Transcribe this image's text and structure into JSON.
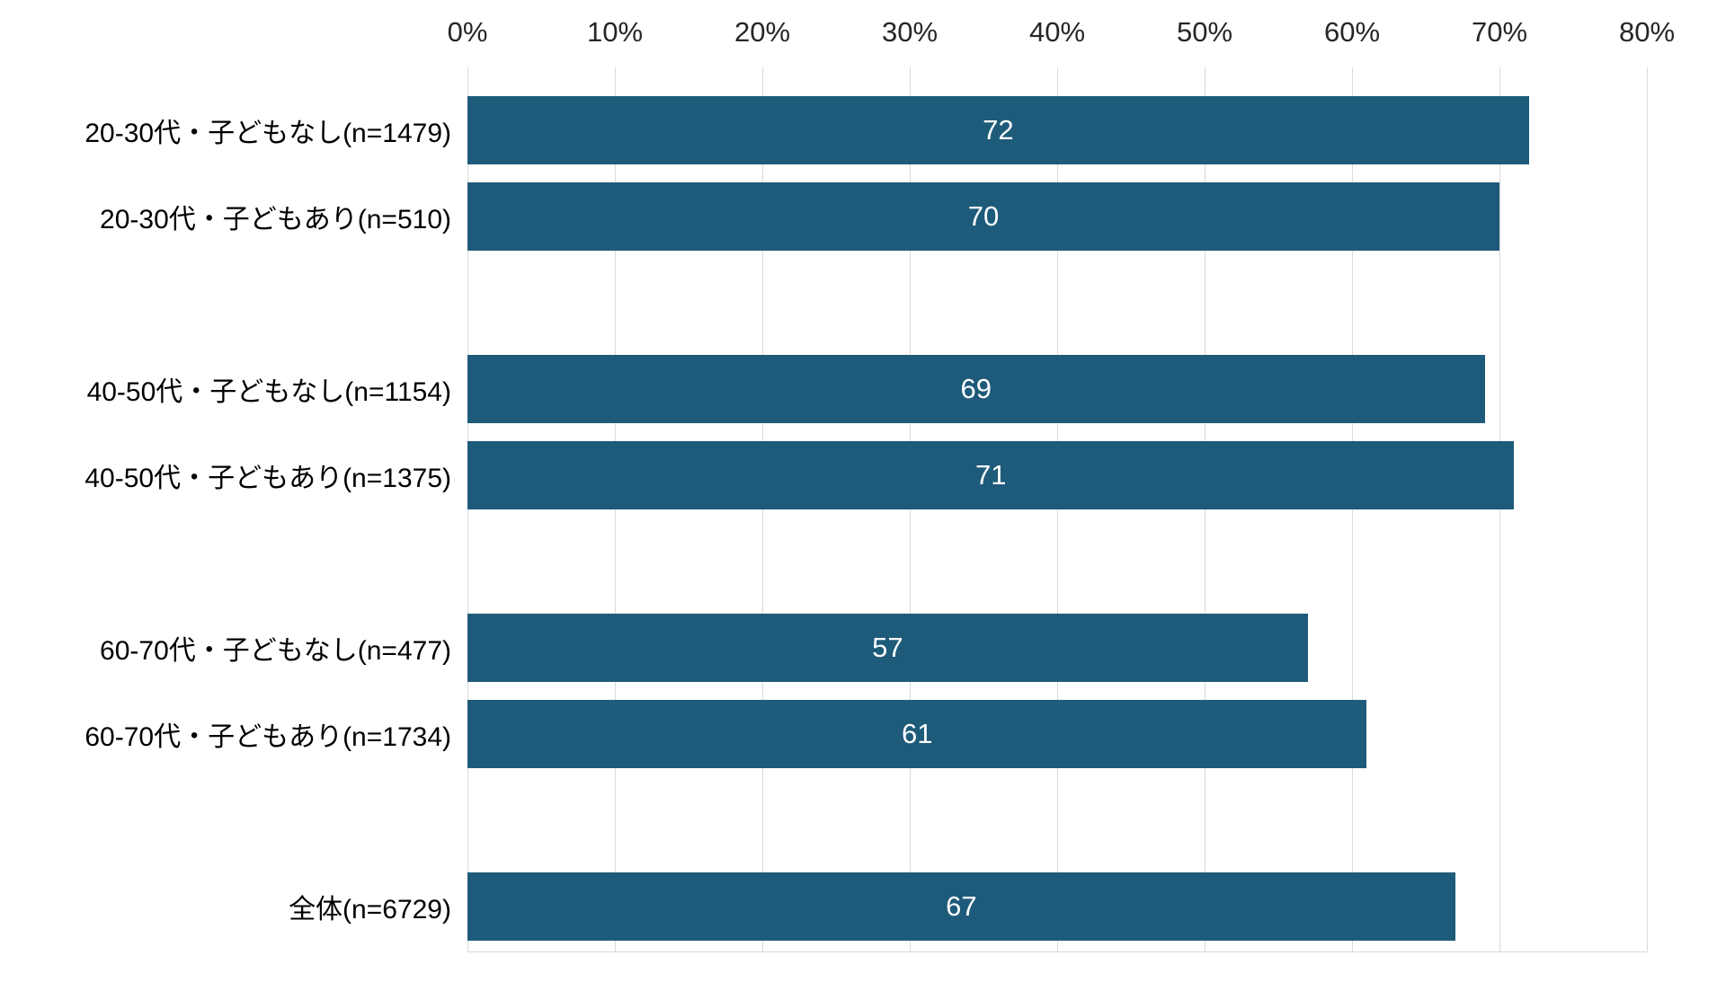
{
  "chart_data": {
    "type": "bar",
    "orientation": "horizontal",
    "title": "",
    "xlabel": "",
    "ylabel": "",
    "x_axis": {
      "min": 0,
      "max": 80,
      "step": 10,
      "tick_labels": [
        "0%",
        "10%",
        "20%",
        "30%",
        "40%",
        "50%",
        "60%",
        "70%",
        "80%"
      ],
      "position": "top"
    },
    "grid": "vertical",
    "legend": "none",
    "categories": [
      "20-30代・子どもなし(n=1479)",
      "20-30代・子どもあり(n=510)",
      "40-50代・子どもなし(n=1154)",
      "40-50代・子どもあり(n=1375)",
      "60-70代・子どもなし(n=477)",
      "60-70代・子どもあり(n=1734)",
      "全体(n=6729)"
    ],
    "values": [
      72,
      70,
      69,
      71,
      57,
      61,
      67
    ],
    "rows": [
      {
        "label": "20-30代・子どもなし(n=1479)",
        "value": 72
      },
      {
        "label": "20-30代・子どもあり(n=510)",
        "value": 70
      },
      {
        "spacer": true
      },
      {
        "label": "40-50代・子どもなし(n=1154)",
        "value": 69
      },
      {
        "label": "40-50代・子どもあり(n=1375)",
        "value": 71
      },
      {
        "spacer": true
      },
      {
        "label": "60-70代・子どもなし(n=477)",
        "value": 57
      },
      {
        "label": "60-70代・子どもあり(n=1734)",
        "value": 61
      },
      {
        "spacer": true
      },
      {
        "label": "全体(n=6729)",
        "value": 67
      }
    ],
    "colors": {
      "bar": "#1e5b7a",
      "gridline": "#d9d9d9",
      "value_label": "#ffffff",
      "category_label": "#000000",
      "axis_label": "#262626"
    }
  }
}
